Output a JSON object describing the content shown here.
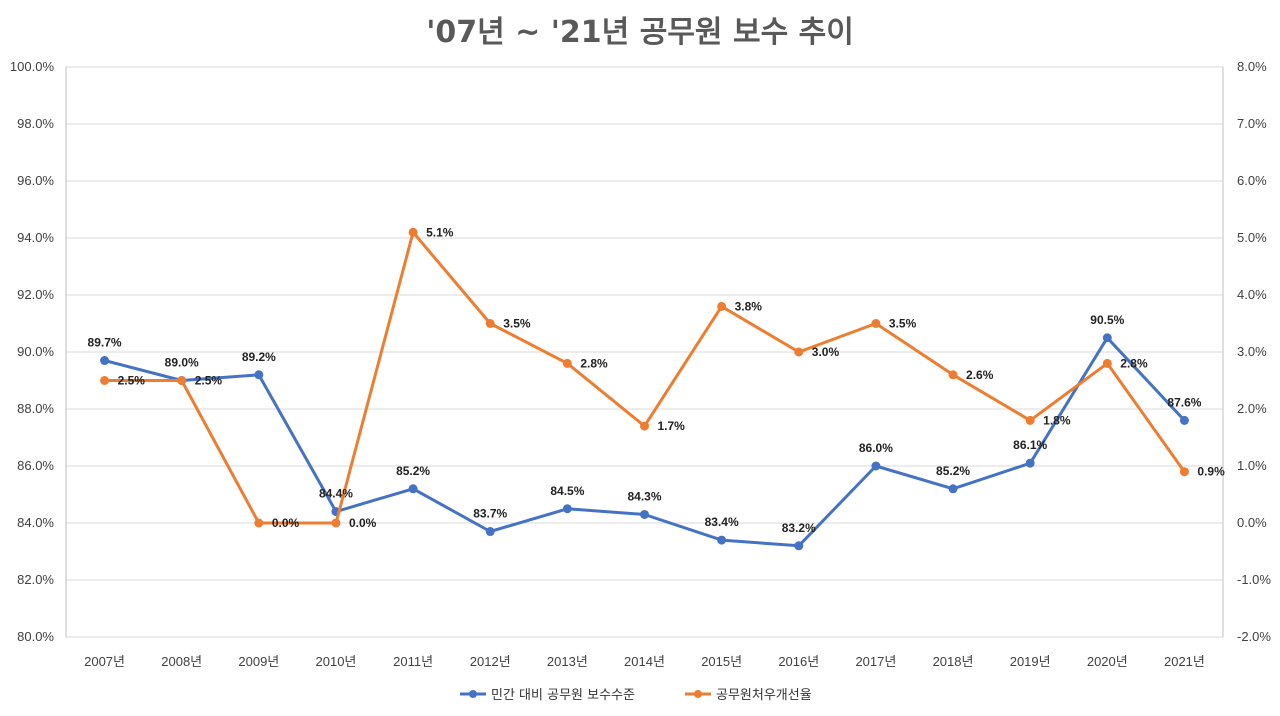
{
  "chart_data": {
    "type": "line",
    "title": "'07년 ~ '21년 공무원 보수 추이",
    "categories": [
      "2007년",
      "2008년",
      "2009년",
      "2010년",
      "2011년",
      "2012년",
      "2013년",
      "2014년",
      "2015년",
      "2016년",
      "2017년",
      "2018년",
      "2019년",
      "2020년",
      "2021년"
    ],
    "y_left": {
      "min": 80,
      "max": 100,
      "step": 2,
      "ticks": [
        "80.0%",
        "82.0%",
        "84.0%",
        "86.0%",
        "88.0%",
        "90.0%",
        "92.0%",
        "94.0%",
        "96.0%",
        "98.0%",
        "100.0%"
      ]
    },
    "y_right": {
      "min": -2,
      "max": 8,
      "step": 1,
      "ticks": [
        "-2.0%",
        "-1.0%",
        "0.0%",
        "1.0%",
        "2.0%",
        "3.0%",
        "4.0%",
        "5.0%",
        "6.0%",
        "7.0%",
        "8.0%"
      ]
    },
    "grid": true,
    "legend_position": "bottom",
    "series": [
      {
        "name": "민간 대비 공무원 보수수준",
        "axis": "left",
        "color": "#4472c4",
        "values": [
          89.7,
          89.0,
          89.2,
          84.4,
          85.2,
          83.7,
          84.5,
          84.3,
          83.4,
          83.2,
          86.0,
          85.2,
          86.1,
          90.5,
          87.6
        ],
        "labels": [
          "89.7%",
          "89.0%",
          "89.2%",
          "84.4%",
          "85.2%",
          "83.7%",
          "84.5%",
          "84.3%",
          "83.4%",
          "83.2%",
          "86.0%",
          "85.2%",
          "86.1%",
          "90.5%",
          "87.6%"
        ]
      },
      {
        "name": "공무원처우개선율",
        "axis": "right",
        "color": "#ed7d31",
        "values": [
          2.5,
          2.5,
          0.0,
          0.0,
          5.1,
          3.5,
          2.8,
          1.7,
          3.8,
          3.0,
          3.5,
          2.6,
          1.8,
          2.8,
          0.9
        ],
        "labels": [
          "2.5%",
          "2.5%",
          "0.0%",
          "0.0%",
          "5.1%",
          "3.5%",
          "2.8%",
          "1.7%",
          "3.8%",
          "3.0%",
          "3.5%",
          "2.6%",
          "1.8%",
          "2.8%",
          "0.9%"
        ]
      }
    ]
  }
}
